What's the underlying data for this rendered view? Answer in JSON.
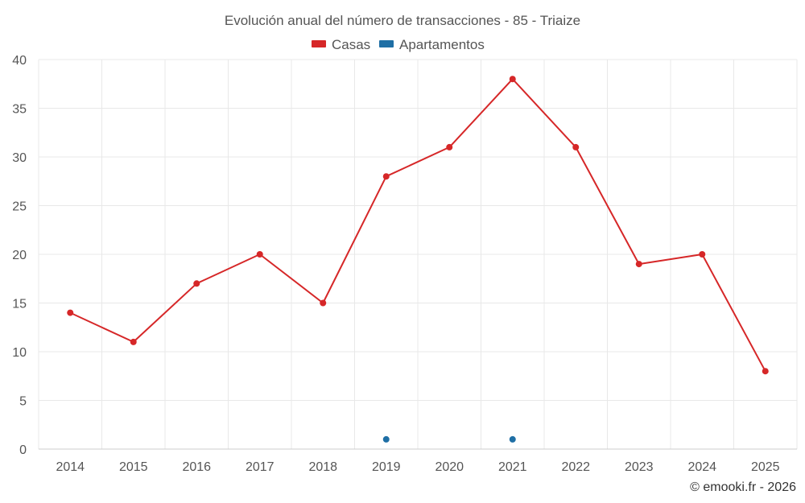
{
  "chart_data": {
    "type": "line",
    "title": "Evolución anual del número de transacciones - 85 - Triaize",
    "categories": [
      "2014",
      "2015",
      "2016",
      "2017",
      "2018",
      "2019",
      "2020",
      "2021",
      "2022",
      "2023",
      "2024",
      "2025"
    ],
    "series": [
      {
        "name": "Casas",
        "color": "#d62728",
        "values": [
          14,
          11,
          17,
          20,
          15,
          28,
          31,
          38,
          31,
          19,
          20,
          8
        ]
      },
      {
        "name": "Apartamentos",
        "color": "#1f6fa5",
        "values": [
          null,
          null,
          null,
          null,
          null,
          1,
          null,
          1,
          null,
          null,
          null,
          null
        ]
      }
    ],
    "ylim": [
      0,
      40
    ],
    "yticks": [
      "0",
      "5",
      "10",
      "15",
      "20",
      "25",
      "30",
      "35",
      "40"
    ],
    "xlabel": "",
    "ylabel": "",
    "grid": true,
    "legend_position": "top-center"
  },
  "credit": "© emooki.fr - 2026"
}
